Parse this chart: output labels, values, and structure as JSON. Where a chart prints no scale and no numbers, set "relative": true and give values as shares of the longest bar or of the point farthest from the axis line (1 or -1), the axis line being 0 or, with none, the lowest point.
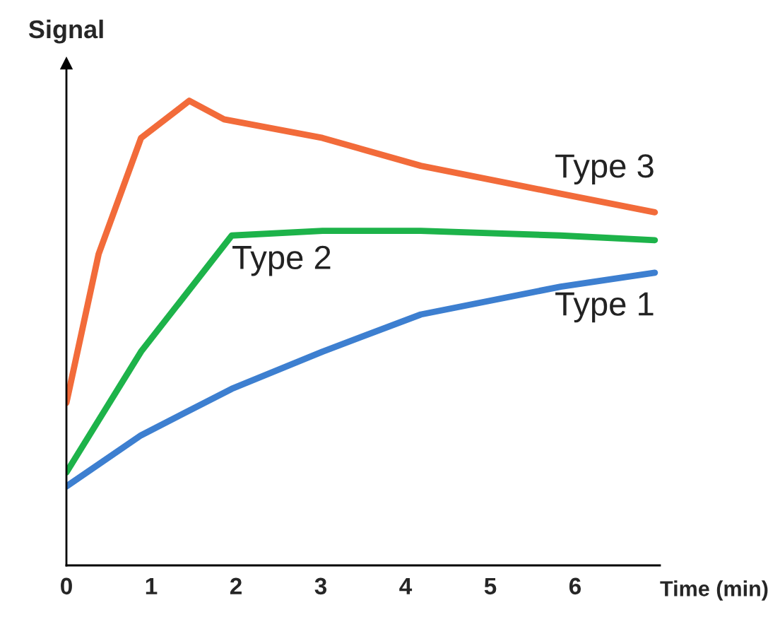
{
  "chart_data": {
    "type": "line",
    "relative": true,
    "ylabel": "Signal",
    "xlabel": "Time (min)",
    "xlim": [
      0,
      7.0
    ],
    "xticks": [
      0,
      1,
      2,
      3,
      4,
      5,
      6
    ],
    "grid": false,
    "legend": false,
    "marker": "none",
    "line_style": "solid",
    "series": [
      {
        "name": "Type 3",
        "color": "#f26b3a",
        "x": [
          0,
          0.38,
          0.88,
          1.45,
          1.86,
          3.02,
          4.18,
          5.83,
          6.94
        ],
        "values": [
          0.35,
          0.67,
          0.92,
          1.0,
          0.96,
          0.92,
          0.86,
          0.8,
          0.76
        ]
      },
      {
        "name": "Type 2",
        "color": "#1db34a",
        "x": [
          0,
          0.88,
          1.95,
          3.02,
          4.18,
          5.83,
          6.94
        ],
        "values": [
          0.2,
          0.46,
          0.71,
          0.72,
          0.72,
          0.71,
          0.7
        ]
      },
      {
        "name": "Type 1",
        "color": "#3d7fd0",
        "x": [
          0,
          0.88,
          1.95,
          3.02,
          4.18,
          5.83,
          6.94
        ],
        "values": [
          0.17,
          0.28,
          0.38,
          0.46,
          0.54,
          0.6,
          0.63
        ]
      }
    ]
  }
}
